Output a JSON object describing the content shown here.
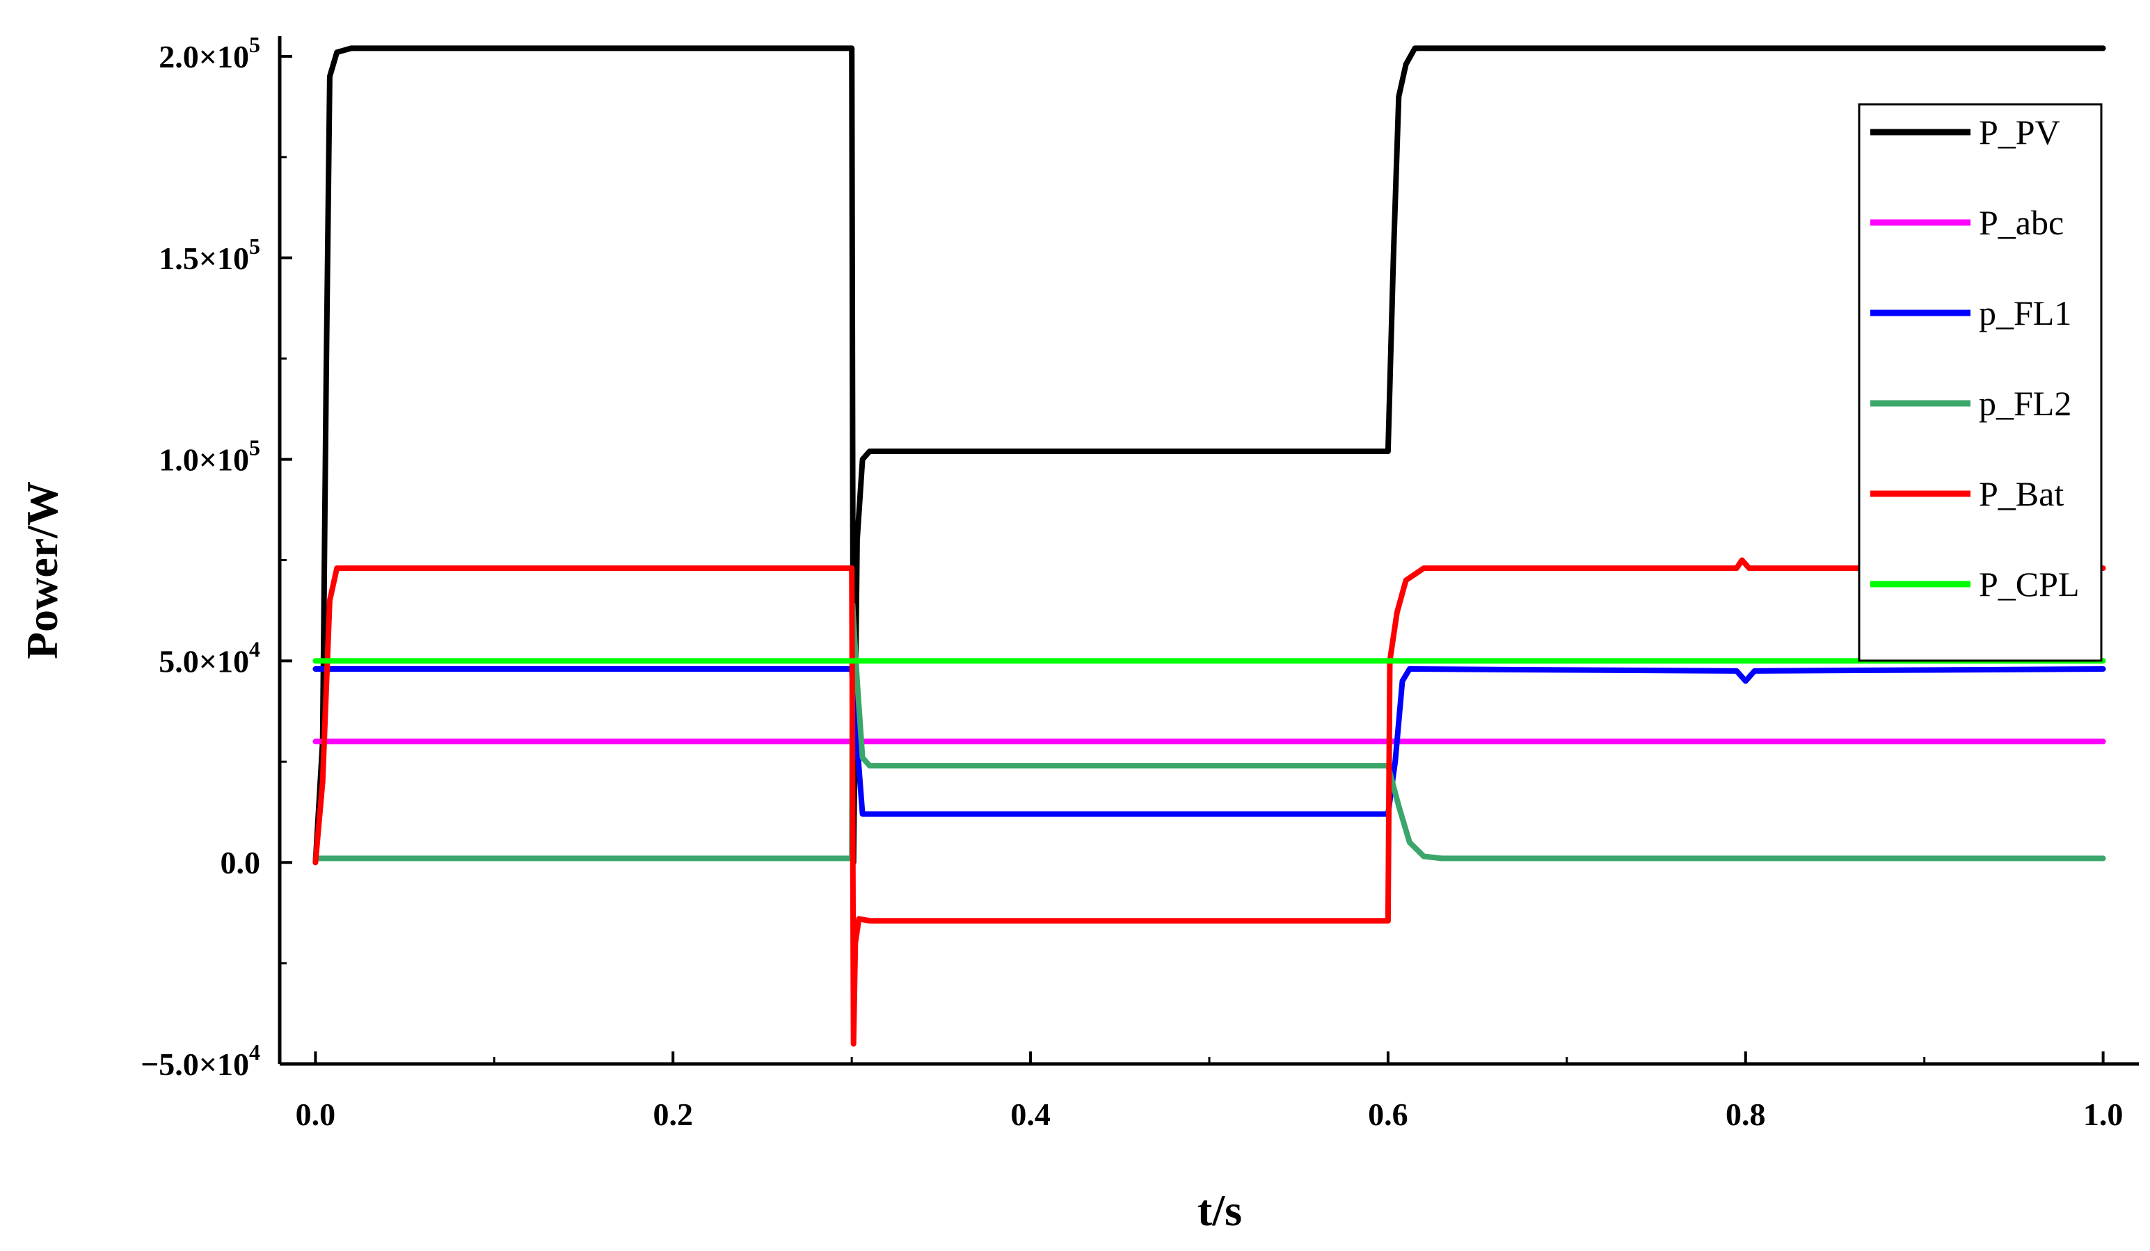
{
  "chart_data": {
    "type": "line",
    "xlabel": "t/s",
    "ylabel": "Power/W",
    "xlim": [
      -0.02,
      1.02
    ],
    "ylim": [
      -50000,
      205000
    ],
    "x_ticks": [
      {
        "value": 0.0,
        "label": "0.0"
      },
      {
        "value": 0.2,
        "label": "0.2"
      },
      {
        "value": 0.4,
        "label": "0.4"
      },
      {
        "value": 0.6,
        "label": "0.6"
      },
      {
        "value": 0.8,
        "label": "0.8"
      },
      {
        "value": 1.0,
        "label": "1.0"
      }
    ],
    "y_ticks": [
      {
        "value": -50000,
        "mant": "−5.0×10",
        "exp": "4"
      },
      {
        "value": 0,
        "mant": "0.0",
        "exp": ""
      },
      {
        "value": 50000,
        "mant": "5.0×10",
        "exp": "4"
      },
      {
        "value": 100000,
        "mant": "1.0×10",
        "exp": "5"
      },
      {
        "value": 150000,
        "mant": "1.5×10",
        "exp": "5"
      },
      {
        "value": 200000,
        "mant": "2.0×10",
        "exp": "5"
      }
    ],
    "legend_position": "top-right",
    "series": [
      {
        "name": "P_PV",
        "color": "#000000",
        "x": [
          0.0,
          0.004,
          0.006,
          0.008,
          0.012,
          0.02,
          0.3,
          0.301,
          0.303,
          0.306,
          0.31,
          0.6,
          0.603,
          0.606,
          0.61,
          0.615,
          1.0
        ],
        "y": [
          0,
          30000,
          120000,
          195000,
          201000,
          202000,
          202000,
          0,
          80000,
          100000,
          102000,
          102000,
          150000,
          190000,
          198000,
          202000,
          202000
        ]
      },
      {
        "name": "P_abc",
        "color": "#ff00ff",
        "x": [
          0.0,
          1.0
        ],
        "y": [
          30000,
          30000
        ]
      },
      {
        "name": "p_FL1",
        "color": "#0000ff",
        "x": [
          0.0,
          0.3,
          0.302,
          0.306,
          0.6,
          0.604,
          0.608,
          0.612,
          0.795,
          0.8,
          0.805,
          1.0
        ],
        "y": [
          48000,
          48000,
          35000,
          12000,
          12000,
          25000,
          45000,
          48000,
          47500,
          45000,
          47500,
          48000
        ]
      },
      {
        "name": "p_FL2",
        "color": "#3aa66a",
        "x": [
          0.0,
          0.3,
          0.3005,
          0.303,
          0.306,
          0.31,
          0.6,
          0.606,
          0.612,
          0.62,
          0.63,
          1.0
        ],
        "y": [
          1000,
          1000,
          64000,
          45000,
          26000,
          24000,
          24000,
          14000,
          5000,
          1500,
          1000,
          1000
        ]
      },
      {
        "name": "P_Bat",
        "color": "#ff0000",
        "x": [
          0.0,
          0.004,
          0.008,
          0.012,
          0.3,
          0.301,
          0.302,
          0.304,
          0.31,
          0.6,
          0.601,
          0.605,
          0.61,
          0.62,
          0.795,
          0.798,
          0.802,
          0.81,
          1.0
        ],
        "y": [
          0,
          20000,
          65000,
          73000,
          73000,
          -45000,
          -20000,
          -14000,
          -14500,
          -14500,
          50000,
          62000,
          70000,
          73000,
          73000,
          75000,
          73000,
          73000,
          73000
        ]
      },
      {
        "name": "P_CPL",
        "color": "#00ff00",
        "x": [
          0.0,
          1.0
        ],
        "y": [
          50000,
          50000
        ]
      }
    ]
  }
}
